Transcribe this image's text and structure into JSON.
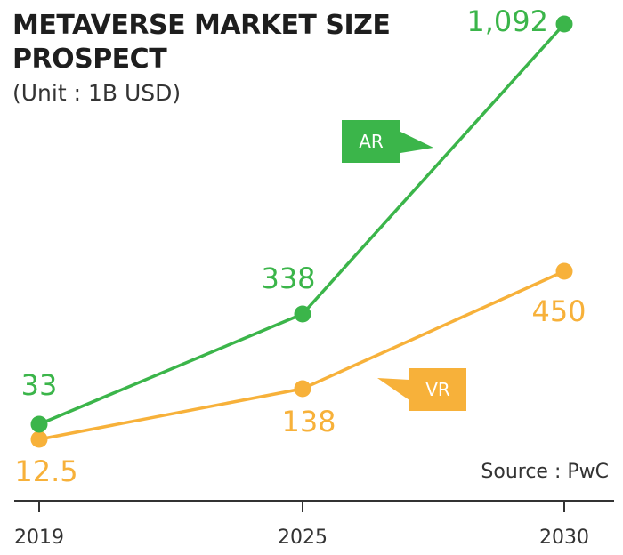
{
  "title_line1": "METAVERSE MARKET SIZE",
  "title_line2": "PROSPECT",
  "subtitle": "(Unit : 1B USD)",
  "source": "Source : PwC",
  "chart_data": {
    "type": "line",
    "x": [
      "2019",
      "2025",
      "2030"
    ],
    "series": [
      {
        "name": "AR",
        "color": "#3bb54a",
        "values": [
          33,
          338,
          1092
        ],
        "labels": [
          "33",
          "338",
          "1,092"
        ]
      },
      {
        "name": "VR",
        "color": "#f7b13a",
        "values": [
          12.5,
          138,
          450
        ],
        "labels": [
          "12.5",
          "138",
          "450"
        ]
      }
    ],
    "title": "METAVERSE MARKET SIZE PROSPECT",
    "xlabel": "",
    "ylabel": "",
    "ylim": [
      0,
      1100
    ],
    "grid": false,
    "legend": "inline tags"
  }
}
